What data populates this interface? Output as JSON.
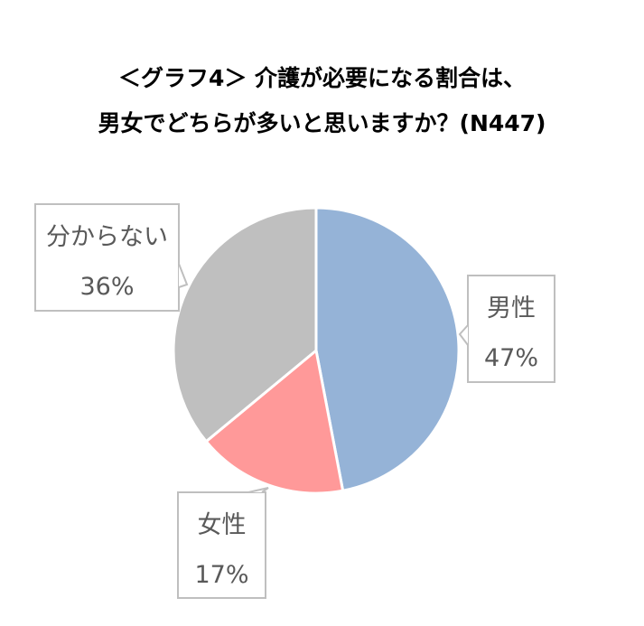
{
  "chart_data": {
    "type": "pie",
    "title_lines": [
      "＜グラフ4＞ 介護が必要になる割合は、",
      "男女でどちらが多いと思いますか？(N447)"
    ],
    "slices": [
      {
        "label": "男性",
        "value": 47,
        "value_label": "47%",
        "color": "#95B3D7"
      },
      {
        "label": "女性",
        "value": 17,
        "value_label": "17%",
        "color": "#FF9999"
      },
      {
        "label": "分からない",
        "value": 36,
        "value_label": "36%",
        "color": "#BFBFBF"
      }
    ],
    "start_angle": "12 o'clock",
    "direction": "clockwise"
  }
}
